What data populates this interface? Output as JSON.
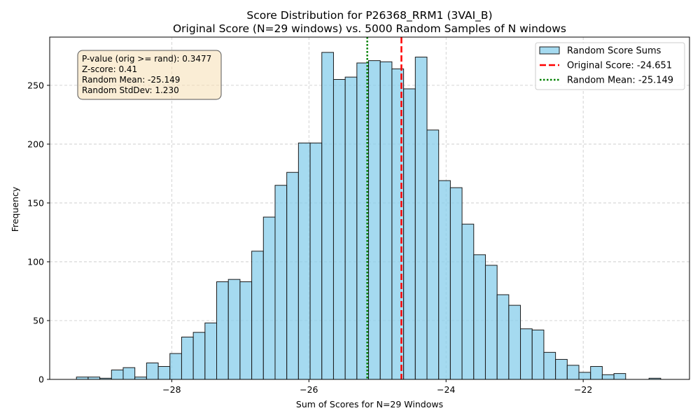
{
  "chart_data": {
    "type": "bar",
    "title": "Score Distribution for P26368_RRM1 (3VAI_B)",
    "subtitle": "Original Score (N=29 windows) vs. 5000 Random Samples of N windows",
    "xlabel": "Sum of Scores for N=29 Windows",
    "ylabel": "Frequency",
    "xlim": [
      -29.78,
      -20.45
    ],
    "ylim": [
      0,
      291
    ],
    "x_ticks": [
      -28,
      -26,
      -24,
      -22
    ],
    "x_tick_labels": [
      "−28",
      "−26",
      "−24",
      "−22"
    ],
    "y_ticks": [
      0,
      50,
      100,
      150,
      200,
      250
    ],
    "y_tick_labels": [
      "0",
      "50",
      "100",
      "150",
      "200",
      "250"
    ],
    "grid": true,
    "bins": {
      "start": -29.39,
      "width": 0.1704,
      "counts": [
        2,
        2,
        1,
        8,
        10,
        2,
        14,
        11,
        22,
        36,
        40,
        48,
        83,
        85,
        83,
        109,
        138,
        165,
        176,
        201,
        201,
        278,
        255,
        257,
        269,
        271,
        270,
        264,
        247,
        274,
        212,
        169,
        163,
        132,
        106,
        97,
        72,
        63,
        43,
        42,
        23,
        17,
        12,
        6,
        11,
        4,
        5,
        0,
        0,
        1
      ]
    },
    "series": [
      {
        "name": "Random Score Sums",
        "kind": "histogram",
        "color": "#87ceeb"
      },
      {
        "name": "Original Score: -24.651",
        "kind": "vline",
        "x": -24.651,
        "color": "#ff0000",
        "style": "dashed"
      },
      {
        "name": "Random Mean: -25.149",
        "kind": "vline",
        "x": -25.149,
        "color": "#008000",
        "style": "dotted"
      }
    ],
    "legend_position": "top-right",
    "stats_box": [
      "P-value (orig >= rand): 0.3477",
      "Z-score: 0.41",
      "Random Mean: -25.149",
      "Random StdDev: 1.230"
    ],
    "stats_box_position": "top-left"
  }
}
